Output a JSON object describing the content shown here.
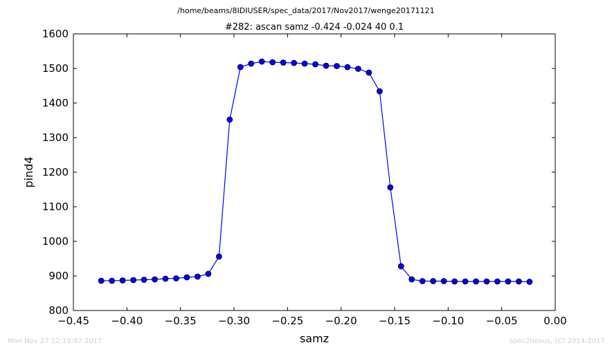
{
  "chart_data": {
    "type": "line",
    "suptitle": "/home/beams/8IDIUSER/spec_data/2017/Nov2017/wenge20171121",
    "title": "#282: ascan  samz -0.424 -0.024  40 0.1",
    "xlabel": "samz",
    "ylabel": "pind4",
    "xlim": [
      -0.45,
      0.0
    ],
    "ylim": [
      800,
      1600
    ],
    "xticks": [
      -0.45,
      -0.4,
      -0.35,
      -0.3,
      -0.25,
      -0.2,
      -0.15,
      -0.1,
      -0.05,
      0.0
    ],
    "xtick_labels": [
      "−0.45",
      "−0.40",
      "−0.35",
      "−0.30",
      "−0.25",
      "−0.20",
      "−0.15",
      "−0.10",
      "−0.05",
      "0.00"
    ],
    "yticks": [
      800,
      900,
      1000,
      1100,
      1200,
      1300,
      1400,
      1500,
      1600
    ],
    "ytick_labels": [
      "800",
      "900",
      "1000",
      "1100",
      "1200",
      "1300",
      "1400",
      "1500",
      "1600"
    ],
    "grid": false,
    "line_color": "#0000ff",
    "marker_color": "#0000ff",
    "series": [
      {
        "x": [
          -0.424,
          -0.414,
          -0.404,
          -0.394,
          -0.384,
          -0.374,
          -0.364,
          -0.354,
          -0.344,
          -0.334,
          -0.324,
          -0.314,
          -0.304,
          -0.294,
          -0.284,
          -0.274,
          -0.264,
          -0.254,
          -0.244,
          -0.234,
          -0.224,
          -0.214,
          -0.204,
          -0.194,
          -0.184,
          -0.174,
          -0.164,
          -0.154,
          -0.144,
          -0.134,
          -0.124,
          -0.114,
          -0.104,
          -0.094,
          -0.084,
          -0.074,
          -0.064,
          -0.054,
          -0.044,
          -0.034,
          -0.024
        ],
        "y": [
          886,
          886,
          887,
          888,
          889,
          890,
          892,
          893,
          896,
          898,
          906,
          956,
          1352,
          1504,
          1514,
          1520,
          1518,
          1517,
          1516,
          1514,
          1512,
          1508,
          1507,
          1504,
          1499,
          1488,
          1434,
          1156,
          928,
          890,
          885,
          885,
          885,
          884,
          884,
          884,
          884,
          884,
          884,
          884,
          883
        ]
      }
    ]
  },
  "footer": {
    "timestamp": "Mon Nov 27 12:19:07 2017",
    "credit": "spec2nexus, (C) 2014-2017"
  }
}
